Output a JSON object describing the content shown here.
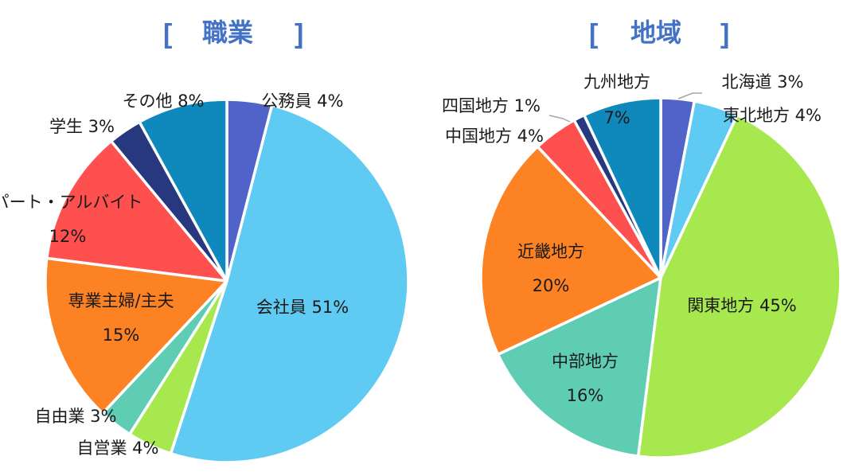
{
  "chart_data": [
    {
      "type": "pie",
      "title": "職業",
      "slices": [
        {
          "name": "公務員",
          "value": 4,
          "color": "#4F63C8",
          "label": "公務員 4%"
        },
        {
          "name": "会社員",
          "value": 51,
          "color": "#5FCAF2",
          "label": "会社員 51%"
        },
        {
          "name": "自営業",
          "value": 4,
          "color": "#A8E84F",
          "label": "自営業 4%"
        },
        {
          "name": "自由業",
          "value": 3,
          "color": "#5ECDB4",
          "label": "自由業 3%"
        },
        {
          "name": "専業主婦/主夫",
          "value": 15,
          "color": "#FC8224",
          "label": "専業主婦/主夫",
          "label2": "15%"
        },
        {
          "name": "パート・アルバイト",
          "value": 12,
          "color": "#FF5050",
          "label": "パート・アルバイト",
          "label2": "12%"
        },
        {
          "name": "学生",
          "value": 3,
          "color": "#27387E",
          "label": "学生 3%"
        },
        {
          "name": "その他",
          "value": 8,
          "color": "#0F89BC",
          "label": "その他 8%"
        }
      ]
    },
    {
      "type": "pie",
      "title": "地域",
      "slices": [
        {
          "name": "北海道",
          "value": 3,
          "color": "#4F63C8",
          "label": "北海道 3%"
        },
        {
          "name": "東北地方",
          "value": 4,
          "color": "#5FCAF2",
          "label": "東北地方 4%"
        },
        {
          "name": "関東地方",
          "value": 45,
          "color": "#A8E84F",
          "label": "関東地方 45%"
        },
        {
          "name": "中部地方",
          "value": 16,
          "color": "#5ECDB4",
          "label": "中部地方",
          "label2": "16%"
        },
        {
          "name": "近畿地方",
          "value": 20,
          "color": "#FC8224",
          "label": "近畿地方",
          "label2": "20%"
        },
        {
          "name": "中国地方",
          "value": 4,
          "color": "#FF5050",
          "label": "中国地方 4%"
        },
        {
          "name": "四国地方",
          "value": 1,
          "color": "#27387E",
          "label": "四国地方 1%"
        },
        {
          "name": "九州地方",
          "value": 7,
          "color": "#0F89BC",
          "label": "九州地方",
          "label2": "7%"
        }
      ]
    }
  ],
  "title_color": "#4472C4",
  "title_brackets": [
    "[",
    "]"
  ]
}
